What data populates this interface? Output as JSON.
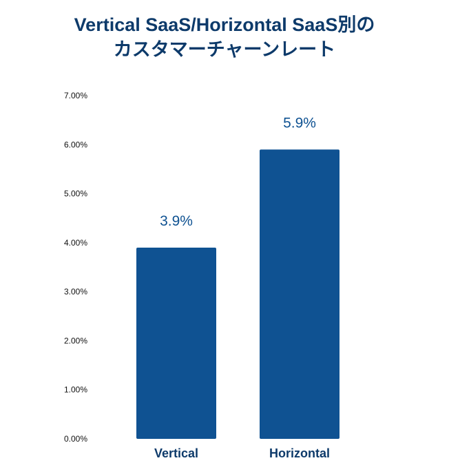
{
  "chart_data": {
    "type": "bar",
    "title_lines": [
      "Vertical SaaS/Horizontal SaaS別の",
      "カスタマーチャーンレート"
    ],
    "categories": [
      "Vertical",
      "Horizontal"
    ],
    "values": [
      3.9,
      5.9
    ],
    "data_labels": [
      "3.9%",
      "5.9%"
    ],
    "ylim": [
      0,
      7
    ],
    "yticks": [
      0,
      1,
      2,
      3,
      4,
      5,
      6,
      7
    ],
    "ytick_labels": [
      "0.00%",
      "1.00%",
      "2.00%",
      "3.00%",
      "4.00%",
      "5.00%",
      "6.00%",
      "7.00%"
    ],
    "xlabel": "",
    "ylabel": "",
    "grid": false,
    "legend": "none",
    "bar_color": "#0f5292",
    "title_color": "#0d3a6a"
  }
}
